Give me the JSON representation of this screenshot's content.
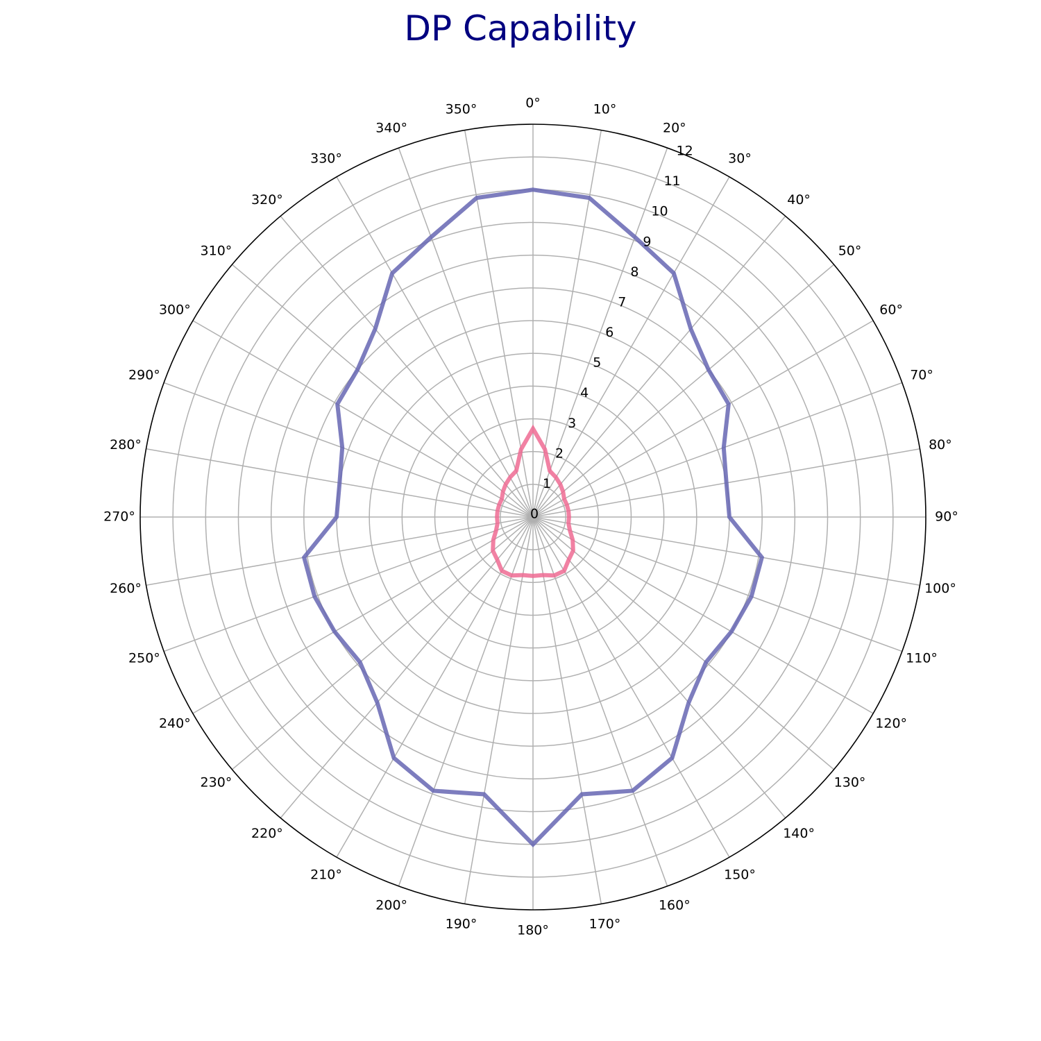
{
  "chart_data": {
    "type": "polar-line",
    "title": "DP Capability",
    "angle_direction": "clockwise",
    "zero_location": "top",
    "rlim": [
      0,
      12
    ],
    "r_ticks": [
      "0",
      "1",
      "2",
      "3",
      "4",
      "5",
      "6",
      "7",
      "8",
      "9",
      "10",
      "11",
      "12"
    ],
    "theta_ticks": [
      "0°",
      "10°",
      "20°",
      "30°",
      "40°",
      "50°",
      "60°",
      "70°",
      "80°",
      "90°",
      "100°",
      "110°",
      "120°",
      "130°",
      "140°",
      "150°",
      "160°",
      "170°",
      "180°",
      "190°",
      "200°",
      "210°",
      "220°",
      "230°",
      "240°",
      "250°",
      "260°",
      "270°",
      "280°",
      "290°",
      "300°",
      "310°",
      "320°",
      "330°",
      "340°",
      "350°"
    ],
    "grid": true,
    "legend": "none",
    "theta_deg": [
      0,
      10,
      20,
      30,
      40,
      50,
      60,
      70,
      80,
      90,
      100,
      110,
      120,
      130,
      140,
      150,
      160,
      170,
      180,
      190,
      200,
      210,
      220,
      230,
      240,
      250,
      260,
      270,
      280,
      290,
      300,
      310,
      320,
      330,
      340,
      350
    ],
    "series": [
      {
        "color": "#6666b3",
        "values": [
          10.0,
          9.9,
          9.1,
          8.6,
          7.5,
          7.0,
          6.9,
          6.2,
          6.0,
          6.0,
          7.1,
          7.1,
          7.0,
          6.9,
          7.4,
          8.5,
          8.9,
          8.6,
          10.0,
          8.6,
          8.9,
          8.5,
          7.4,
          6.9,
          7.0,
          7.1,
          7.1,
          6.0,
          6.0,
          6.2,
          6.9,
          7.0,
          7.5,
          8.6,
          9.1,
          9.9
        ]
      },
      {
        "color": "#ee6b93",
        "values": [
          2.7,
          2.1,
          1.5,
          1.4,
          1.3,
          1.2,
          1.1,
          1.1,
          1.1,
          1.1,
          1.1,
          1.2,
          1.4,
          1.6,
          1.7,
          1.9,
          1.9,
          1.8,
          1.8,
          1.8,
          1.9,
          1.9,
          1.7,
          1.6,
          1.4,
          1.2,
          1.1,
          1.1,
          1.1,
          1.1,
          1.1,
          1.2,
          1.3,
          1.4,
          1.5,
          2.1
        ]
      }
    ]
  }
}
